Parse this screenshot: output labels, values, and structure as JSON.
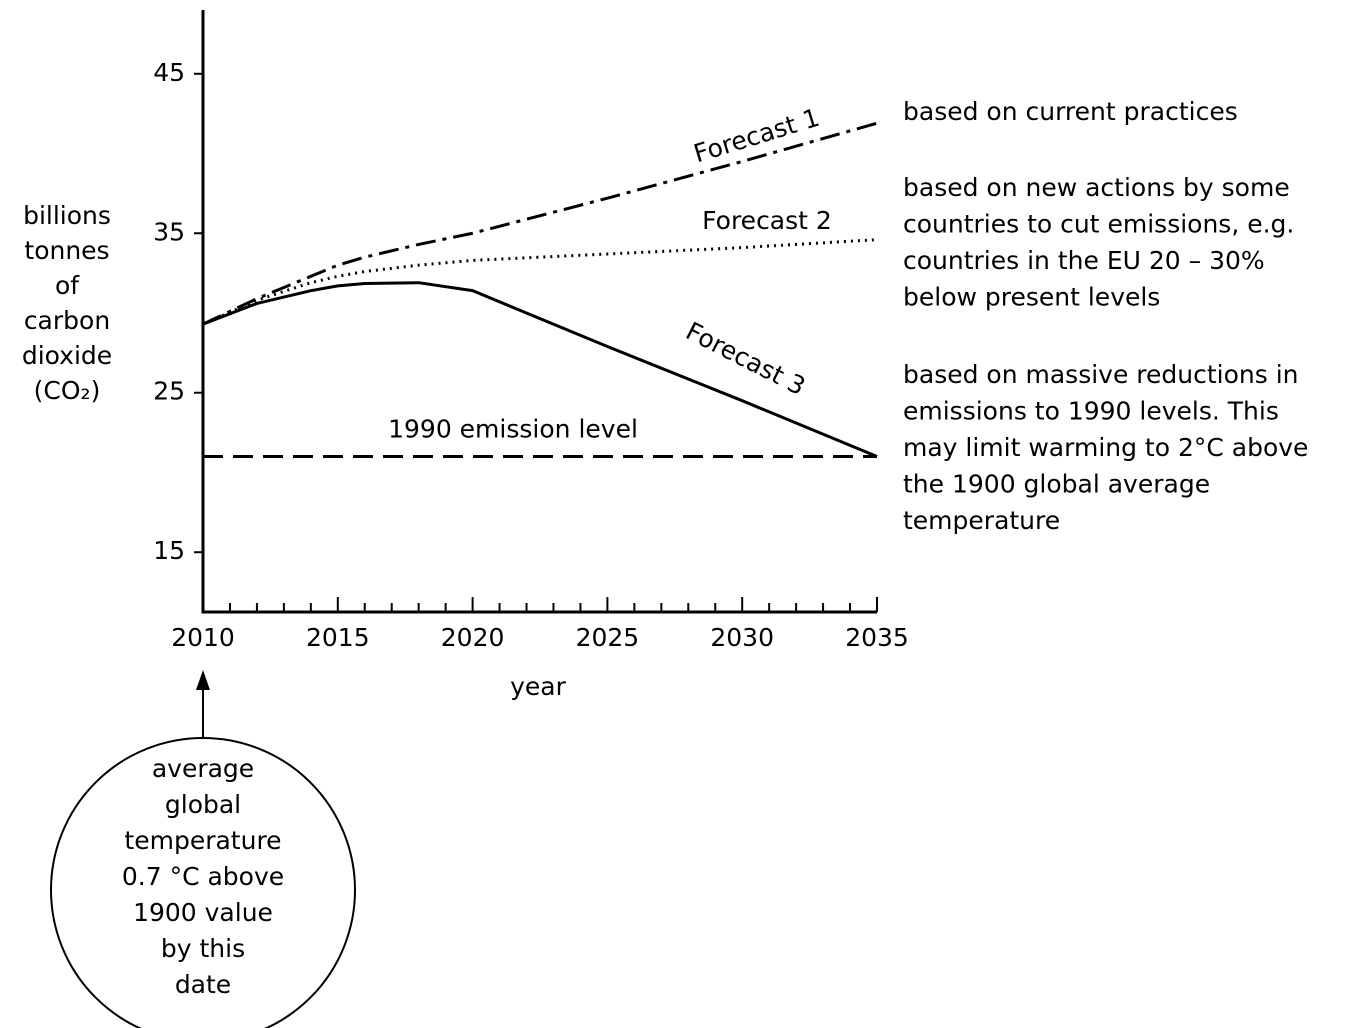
{
  "chart_data": {
    "type": "line",
    "x": [
      2010,
      2012,
      2014,
      2015,
      2016,
      2018,
      2020,
      2025,
      2030,
      2035
    ],
    "series": [
      {
        "name": "Forecast 1",
        "color": "#000000",
        "style": "dashdot",
        "values": [
          29.3,
          30.9,
          32.3,
          33.0,
          33.5,
          34.3,
          35.0,
          37.2,
          39.5,
          41.9
        ],
        "description": [
          "based on current practices"
        ]
      },
      {
        "name": "Forecast 2",
        "color": "#000000",
        "style": "dotted",
        "values": [
          29.3,
          30.8,
          31.9,
          32.3,
          32.6,
          33.0,
          33.3,
          33.7,
          34.1,
          34.6
        ],
        "description": [
          "based on new actions by some",
          "countries to cut emissions, e.g.",
          "countries in the EU 20 – 30%",
          "below present levels"
        ]
      },
      {
        "name": "Forecast 3",
        "color": "#000000",
        "style": "solid",
        "values": [
          29.3,
          30.6,
          31.4,
          31.7,
          31.85,
          31.9,
          31.4,
          27.9,
          24.5,
          21.0
        ],
        "description": [
          "based on massive reductions in",
          "emissions to 1990 levels. This",
          "may limit warming to 2°C above",
          "the 1900 global average",
          "temperature"
        ]
      }
    ],
    "reference_line": {
      "value": 21.0,
      "label": "1990 emission level",
      "style": "dashed"
    },
    "y_label": [
      "billions",
      "tonnes",
      "of",
      "carbon",
      "dioxide",
      "(CO₂)"
    ],
    "x_label": "year",
    "annotation": [
      "average",
      "global",
      "temperature",
      "0.7 °C above",
      "1900 value",
      "by this",
      "date"
    ],
    "xlim": [
      2010,
      2035
    ],
    "xticks": [
      2010,
      2015,
      2020,
      2025,
      2030,
      2035
    ],
    "xminorticks": [
      2011,
      2012,
      2013,
      2014,
      2016,
      2017,
      2018,
      2019,
      2021,
      2022,
      2023,
      2024,
      2026,
      2027,
      2028,
      2029,
      2031,
      2032,
      2033,
      2034
    ],
    "ylim": [
      11.25,
      49
    ],
    "yticks": [
      15,
      25,
      35,
      45
    ]
  }
}
